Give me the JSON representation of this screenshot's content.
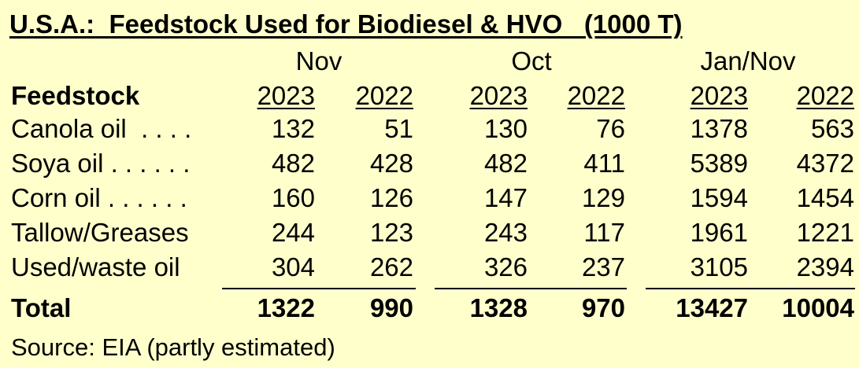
{
  "title": "U.S.A.:  Feedstock Used for Biodiesel & HVO   (1000 T)",
  "period_headers": [
    "Nov",
    "Oct",
    "Jan/Nov"
  ],
  "feedstock_header": "Feedstock",
  "year_headers": [
    "2023",
    "2022",
    "2023",
    "2022",
    "2023",
    "2022"
  ],
  "rows": [
    {
      "label": "Canola oil  . . . .",
      "values": [
        "132",
        "51",
        "130",
        "76",
        "1378",
        "563"
      ]
    },
    {
      "label": "Soya oil . . . . . .",
      "values": [
        "482",
        "428",
        "482",
        "411",
        "5389",
        "4372"
      ]
    },
    {
      "label": "Corn oil . . . . . .",
      "values": [
        "160",
        "126",
        "147",
        "129",
        "1594",
        "1454"
      ]
    },
    {
      "label": "Tallow/Greases",
      "values": [
        "244",
        "123",
        "243",
        "117",
        "1961",
        "1221"
      ]
    },
    {
      "label": "Used/waste oil",
      "values": [
        "304",
        "262",
        "326",
        "237",
        "3105",
        "2394"
      ]
    }
  ],
  "total": {
    "label": "Total",
    "values": [
      "1322",
      "990",
      "1328",
      "970",
      "13427",
      "10004"
    ]
  },
  "source": "Source: EIA (partly estimated)"
}
